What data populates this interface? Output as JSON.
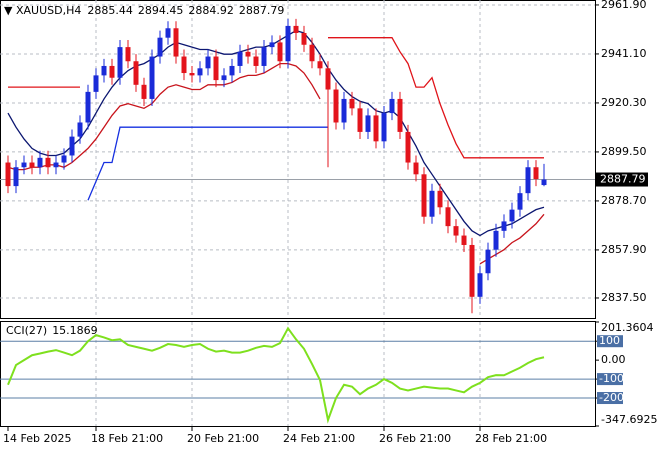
{
  "chart_data": [
    {
      "type": "candlestick",
      "title": "XAUUSD,H4",
      "up_color": "#1a2bd8",
      "down_color": "#e3141c",
      "open": [
        2895,
        2885,
        2893,
        2895,
        2893,
        2897,
        2893,
        2895,
        2898,
        2906,
        2912,
        2925,
        2932,
        2936,
        2931,
        2944,
        2938,
        2928,
        2922,
        2940,
        2948,
        2952,
        2940,
        2933,
        2932,
        2935,
        2940,
        2930,
        2932,
        2936,
        2942,
        2940,
        2936,
        2944,
        2946,
        2938,
        2953,
        2950,
        2945,
        2938,
        2935,
        2926,
        2912,
        2922,
        2918,
        2908,
        2915,
        2904,
        2916,
        2922,
        2908,
        2895,
        2890,
        2872,
        2883,
        2876,
        2868,
        2864,
        2860,
        2838,
        2848,
        2858,
        2866,
        2870,
        2875,
        2882,
        2893,
        2885.44
      ],
      "high": [
        2898,
        2896,
        2898,
        2898,
        2900,
        2900,
        2898,
        2901,
        2909,
        2915,
        2928,
        2935,
        2939,
        2939,
        2947,
        2947,
        2941,
        2931,
        2943,
        2951,
        2955,
        2955,
        2943,
        2936,
        2938,
        2943,
        2943,
        2935,
        2939,
        2945,
        2945,
        2943,
        2947,
        2949,
        2949,
        2956,
        2956,
        2953,
        2948,
        2941,
        2938,
        2929,
        2925,
        2925,
        2921,
        2918,
        2918,
        2919,
        2925,
        2925,
        2911,
        2898,
        2893,
        2886,
        2886,
        2879,
        2871,
        2867,
        2863,
        2851,
        2861,
        2869,
        2873,
        2878,
        2885,
        2896,
        2896,
        2894.45
      ],
      "low": [
        2882,
        2882,
        2890,
        2890,
        2890,
        2890,
        2890,
        2892,
        2895,
        2903,
        2909,
        2922,
        2929,
        2928,
        2928,
        2935,
        2925,
        2919,
        2919,
        2937,
        2945,
        2937,
        2930,
        2929,
        2929,
        2932,
        2927,
        2927,
        2929,
        2933,
        2937,
        2933,
        2933,
        2941,
        2935,
        2935,
        2947,
        2942,
        2935,
        2932,
        2893,
        2909,
        2909,
        2915,
        2905,
        2905,
        2901,
        2901,
        2913,
        2905,
        2892,
        2887,
        2869,
        2869,
        2873,
        2865,
        2861,
        2857,
        2831,
        2835,
        2845,
        2855,
        2863,
        2867,
        2872,
        2879,
        2885,
        2884.92
      ],
      "close": [
        2885,
        2893,
        2895,
        2893,
        2897,
        2893,
        2895,
        2898,
        2906,
        2912,
        2925,
        2932,
        2936,
        2931,
        2944,
        2938,
        2928,
        2922,
        2940,
        2948,
        2952,
        2940,
        2933,
        2932,
        2935,
        2940,
        2930,
        2932,
        2936,
        2942,
        2940,
        2936,
        2944,
        2946,
        2938,
        2953,
        2950,
        2945,
        2938,
        2935,
        2926,
        2912,
        2922,
        2918,
        2908,
        2915,
        2904,
        2916,
        2922,
        2908,
        2895,
        2890,
        2872,
        2883,
        2876,
        2868,
        2864,
        2860,
        2838,
        2848,
        2858,
        2866,
        2870,
        2875,
        2882,
        2893,
        2888,
        2887.79
      ],
      "series": [
        {
          "color": "#0b1670",
          "values": [
            2916,
            2910,
            2905,
            2901,
            2899,
            2898,
            2898,
            2899,
            2902,
            2905,
            2910,
            2916,
            2922,
            2927,
            2931,
            2934,
            2936,
            2937,
            2939,
            2941,
            2944,
            2946,
            2945,
            2944,
            2943,
            2943,
            2942,
            2941,
            2941,
            2942,
            2943,
            2944,
            2944,
            2945,
            2947,
            2949,
            2951,
            2950,
            2946,
            2941,
            2935,
            2930,
            2926,
            2923,
            2921,
            2920,
            2917,
            2916,
            2917,
            2914,
            2908,
            2902,
            2895,
            2890,
            2885,
            2880,
            2875,
            2870,
            2866,
            2864,
            2866,
            2867,
            2868,
            2869,
            2871,
            2873,
            2875,
            2876
          ]
        },
        {
          "color": "#c8141c",
          "values": [
            2893,
            2892,
            2892,
            2893,
            2893,
            2894,
            2894,
            2893,
            2895,
            2898,
            2901,
            2905,
            2910,
            2915,
            2919,
            2920,
            2919,
            2918,
            2920,
            2924,
            2927,
            2928,
            2927,
            2926,
            2926,
            2928,
            2928,
            2928,
            2929,
            2931,
            2932,
            2932,
            2933,
            2935,
            2937,
            2937,
            2936,
            2933,
            2928,
            2922,
            null,
            null,
            null,
            null,
            null,
            null,
            null,
            null,
            null,
            null,
            null,
            null,
            null,
            null,
            null,
            null,
            null,
            null,
            null,
            2852,
            2854,
            2856,
            2858,
            2861,
            2863,
            2866,
            2869,
            2873
          ]
        },
        {
          "color": "#e0141a",
          "values": [
            2927,
            2927,
            2927,
            2927,
            2927,
            2927,
            2927,
            2927,
            2927,
            2927,
            null,
            null,
            null,
            null,
            null,
            null,
            null,
            null,
            null,
            null,
            null,
            null,
            null,
            null,
            null,
            null,
            null,
            null,
            null,
            null,
            null,
            null,
            null,
            null,
            null,
            null,
            null,
            null,
            null,
            null,
            2948,
            2948,
            2948,
            2948,
            2948,
            2948,
            2948,
            2948,
            2948,
            2942,
            2937,
            2927,
            2927,
            2931,
            2920,
            2911,
            2903,
            2897,
            2897,
            2897,
            2897,
            2897,
            2897,
            2897,
            2897,
            2897,
            2897,
            2897
          ]
        },
        {
          "color": "#1630e0",
          "values": [
            null,
            null,
            null,
            null,
            null,
            null,
            null,
            null,
            null,
            null,
            2879,
            2887,
            2895,
            2895,
            2910,
            2910,
            2910,
            2910,
            2910,
            2910,
            2910,
            2910,
            2910,
            2910,
            2910,
            2910,
            2910,
            2910,
            2910,
            2910,
            2910,
            2910,
            2910,
            2910,
            2910,
            2910,
            2910,
            2910,
            2910,
            2910,
            2910,
            null,
            null,
            null,
            null,
            null,
            null,
            null,
            null,
            null,
            null,
            null,
            null,
            null,
            null,
            null,
            null,
            null,
            null,
            null,
            null,
            null,
            null,
            null,
            null,
            null,
            null,
            null
          ]
        }
      ],
      "ylim": [
        2829,
        2964
      ],
      "yticks": [
        {
          "value": 2961.9,
          "label": "2961.90"
        },
        {
          "value": 2941.1,
          "label": "2941.10"
        },
        {
          "value": 2920.3,
          "label": "2920.30"
        },
        {
          "value": 2899.5,
          "label": "2899.50"
        },
        {
          "value": 2878.7,
          "label": "2878.70"
        },
        {
          "value": 2857.9,
          "label": "2857.90"
        },
        {
          "value": 2837.5,
          "label": "2837.50"
        }
      ],
      "xticks": [
        {
          "value": 0,
          "label": "14 Feb 2025"
        },
        {
          "value": 11,
          "label": "18 Feb 21:00"
        },
        {
          "value": 23,
          "label": "20 Feb 21:00"
        },
        {
          "value": 35,
          "label": "24 Feb 21:00"
        },
        {
          "value": 47,
          "label": "26 Feb 21:00"
        },
        {
          "value": 59,
          "label": "28 Feb 21:00"
        }
      ],
      "grid": true
    },
    {
      "type": "line",
      "title": "CCI(27)",
      "series": [
        {
          "color": "#7ee01e",
          "values": [
            -130,
            -26,
            0,
            26,
            35,
            45,
            53,
            40,
            26,
            50,
            100,
            132,
            120,
            105,
            110,
            80,
            70,
            60,
            50,
            65,
            85,
            80,
            70,
            80,
            85,
            60,
            45,
            50,
            40,
            40,
            50,
            65,
            75,
            70,
            90,
            168,
            110,
            60,
            -20,
            -105,
            -316,
            -200,
            -130,
            -140,
            -180,
            -150,
            -130,
            -100,
            -120,
            -150,
            -160,
            -150,
            -140,
            -145,
            -150,
            -150,
            -160,
            -170,
            -140,
            -120,
            -90,
            -79,
            -80,
            -60,
            -40,
            -15,
            5,
            15.1869
          ]
        }
      ],
      "ylim": [
        -347.6925,
        201.3604
      ],
      "yticks": [
        201.3604,
        100,
        {
          "value": 0,
          "label": "0.00"
        },
        -100,
        -200,
        -347.6925
      ]
    }
  ]
}
